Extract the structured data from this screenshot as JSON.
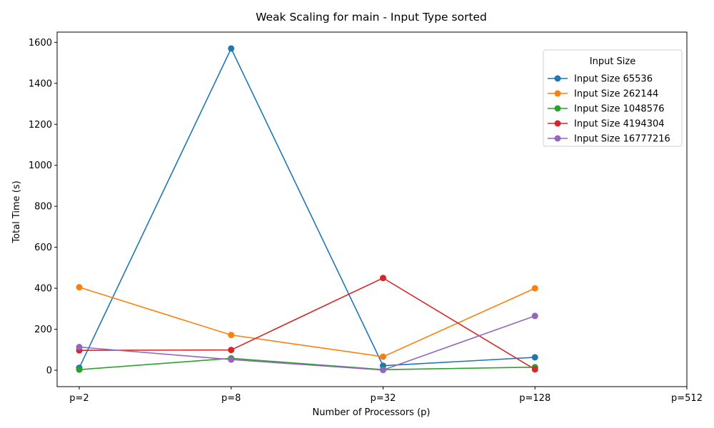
{
  "chart_data": {
    "type": "line",
    "title": "Weak Scaling for main - Input Type sorted",
    "xlabel": "Number of Processors (p)",
    "ylabel": "Total Time (s)",
    "categories": [
      "p=2",
      "p=8",
      "p=32",
      "p=128",
      "p=512"
    ],
    "ylim": [
      -80,
      1650
    ],
    "yticks": [
      0,
      200,
      400,
      600,
      800,
      1000,
      1200,
      1400,
      1600
    ],
    "grid": false,
    "legend": {
      "title": "Input Size",
      "placement": "upper right"
    },
    "series": [
      {
        "name": "Input Size 65536",
        "color": "#1f77b4",
        "values": [
          12,
          1570,
          22,
          63,
          null
        ]
      },
      {
        "name": "Input Size 262144",
        "color": "#ff7f0e",
        "values": [
          405,
          172,
          66,
          400,
          null
        ]
      },
      {
        "name": "Input Size 1048576",
        "color": "#2ca02c",
        "values": [
          3,
          58,
          3,
          15,
          null
        ]
      },
      {
        "name": "Input Size 4194304",
        "color": "#d62728",
        "values": [
          97,
          99,
          450,
          4,
          null
        ]
      },
      {
        "name": "Input Size 16777216",
        "color": "#9467bd",
        "values": [
          113,
          52,
          1,
          265,
          null
        ]
      }
    ]
  }
}
